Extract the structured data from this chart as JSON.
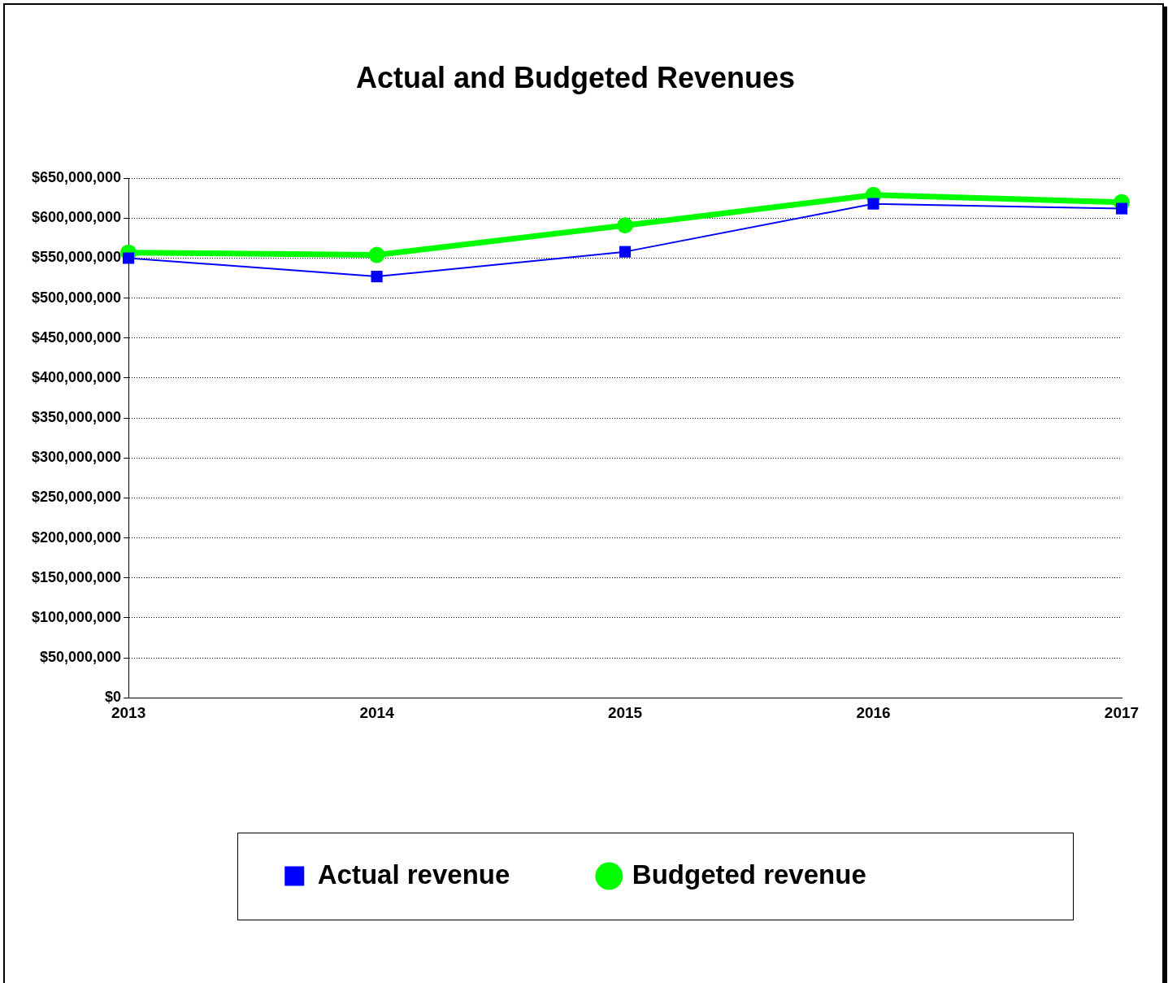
{
  "chart_data": {
    "type": "line",
    "title": "Actual and Budgeted Revenues",
    "categories": [
      "2013",
      "2014",
      "2015",
      "2016",
      "2017"
    ],
    "series": [
      {
        "name": "Actual revenue",
        "color": "#0000ff",
        "marker": "square",
        "values": [
          550000000,
          527000000,
          558000000,
          618000000,
          612000000
        ]
      },
      {
        "name": "Budgeted revenue",
        "color": "#00ff00",
        "marker": "circle",
        "values": [
          557000000,
          554000000,
          591000000,
          629000000,
          620000000
        ]
      }
    ],
    "ylim": [
      0,
      650000000
    ],
    "yticks": [
      {
        "value": 0,
        "label": "$0"
      },
      {
        "value": 50000000,
        "label": "$50,000,000"
      },
      {
        "value": 100000000,
        "label": "$100,000,000"
      },
      {
        "value": 150000000,
        "label": "$150,000,000"
      },
      {
        "value": 200000000,
        "label": "$200,000,000"
      },
      {
        "value": 250000000,
        "label": "$250,000,000"
      },
      {
        "value": 300000000,
        "label": "$300,000,000"
      },
      {
        "value": 350000000,
        "label": "$350,000,000"
      },
      {
        "value": 400000000,
        "label": "$400,000,000"
      },
      {
        "value": 450000000,
        "label": "$450,000,000"
      },
      {
        "value": 500000000,
        "label": "$500,000,000"
      },
      {
        "value": 550000000,
        "label": "$550,000,000"
      },
      {
        "value": 600000000,
        "label": "$600,000,000"
      },
      {
        "value": 650000000,
        "label": "$650,000,000"
      }
    ],
    "grid": "y",
    "legend": "bottom"
  }
}
